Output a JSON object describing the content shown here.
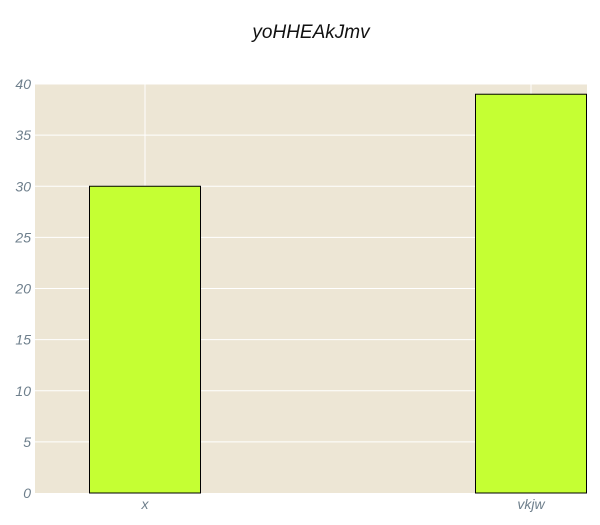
{
  "chart_data": {
    "type": "bar",
    "title": "yoHHEAkJmv",
    "xlabel": "",
    "ylabel": "",
    "categories": [
      "x",
      "vkjw"
    ],
    "values": [
      30,
      39
    ],
    "ylim": [
      0,
      40
    ],
    "yticks": [
      0,
      5,
      10,
      15,
      20,
      25,
      30,
      35,
      40
    ],
    "grid": true,
    "legend": "none"
  },
  "colors": {
    "plot_background": "#ede6d5",
    "bar_fill": "#c5ff33",
    "bar_stroke": "#000000",
    "grid": "#ffffff",
    "tick_text": "#6e7f8c"
  }
}
